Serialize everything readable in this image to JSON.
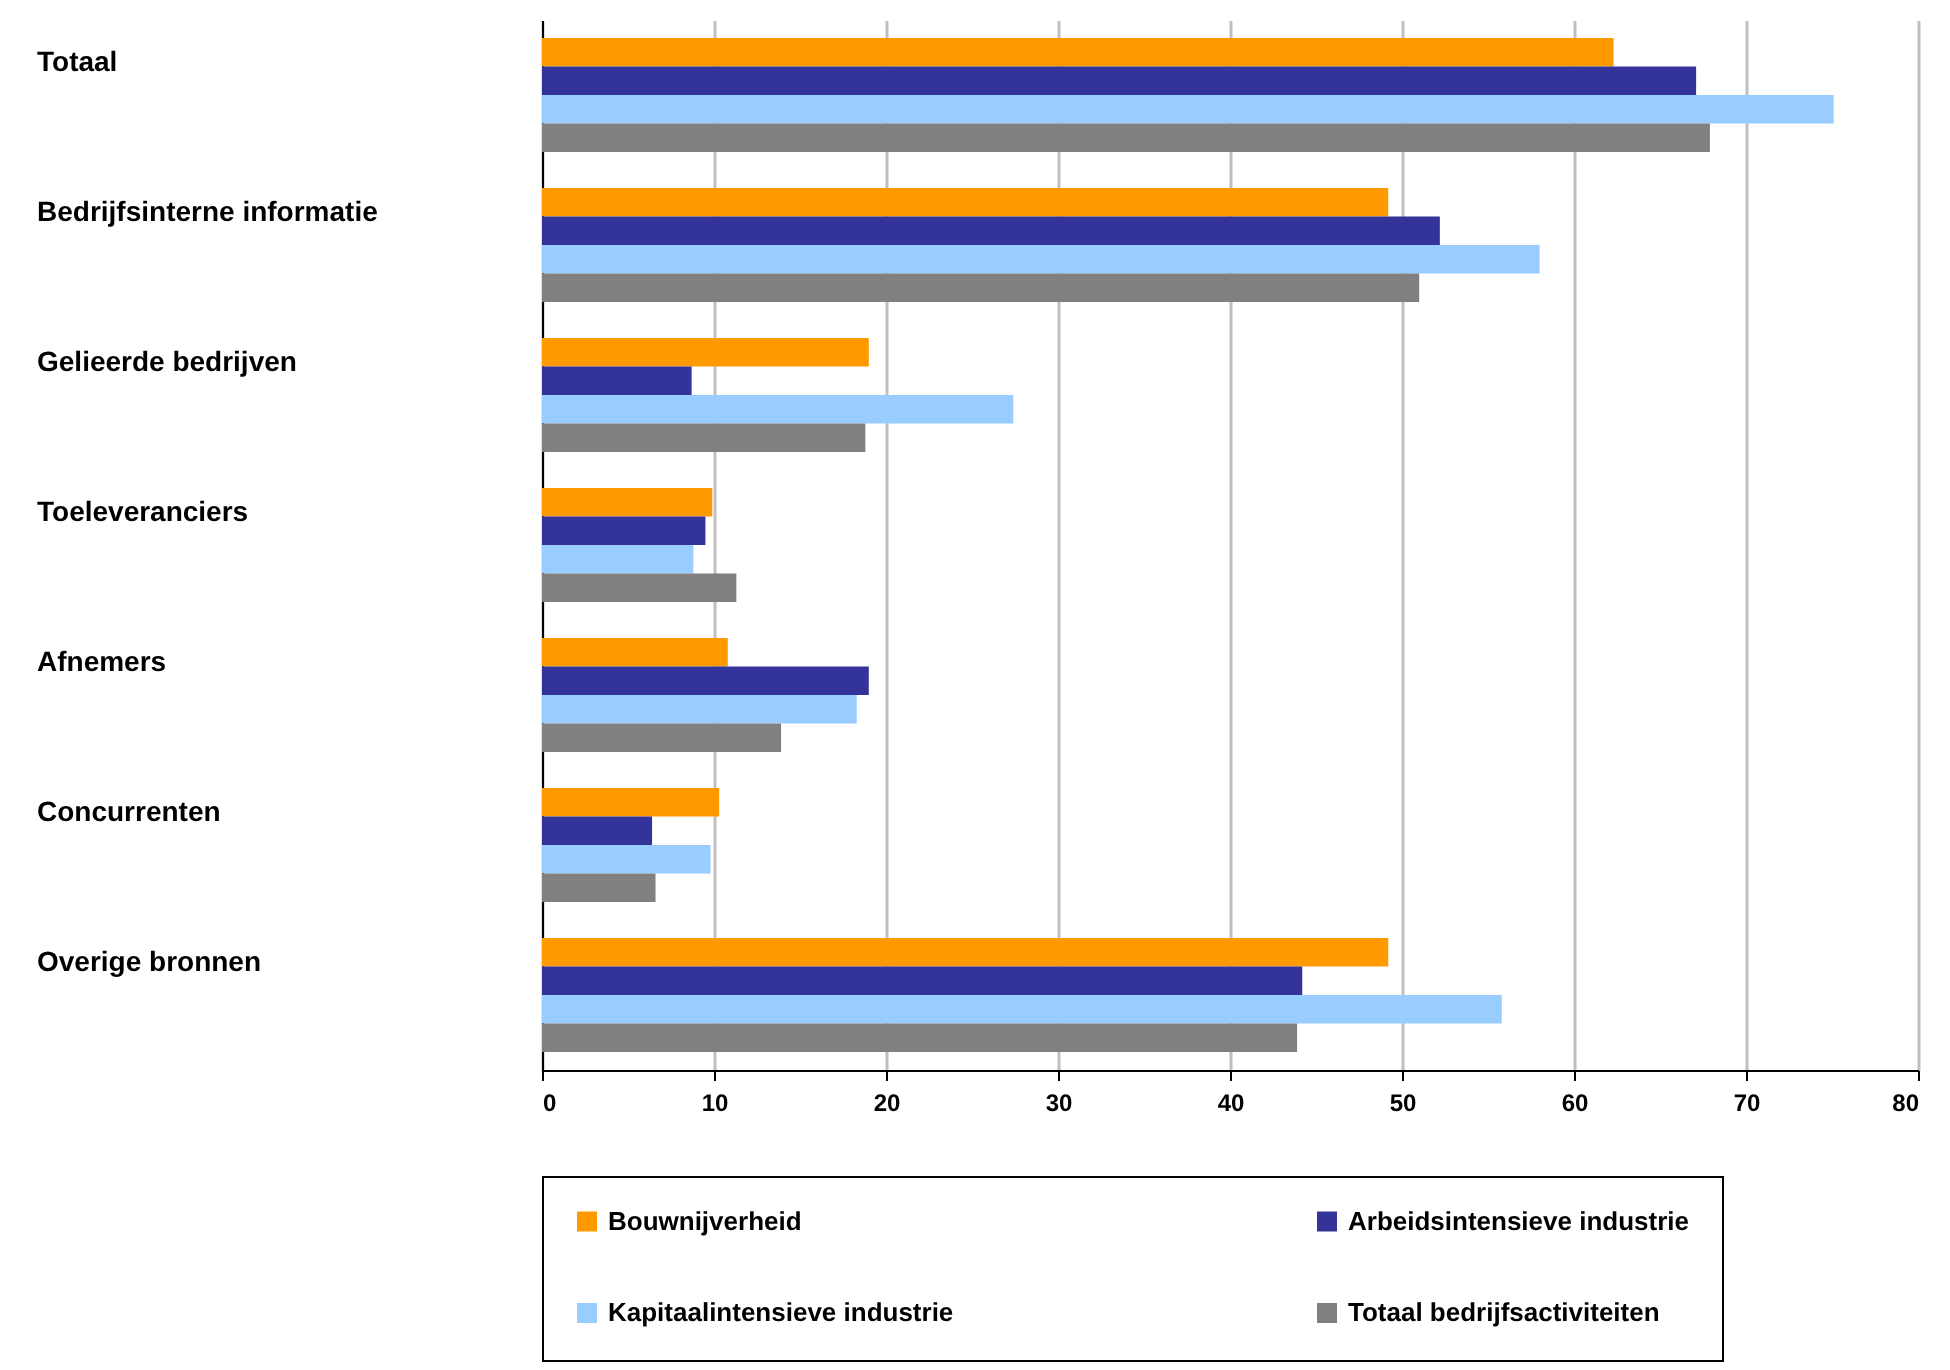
{
  "chart_data": {
    "type": "bar",
    "orientation": "horizontal",
    "categories": [
      "Totaal",
      "Bedrijfsinterne informatie",
      "Gelieerde bedrijven",
      "Toeleveranciers",
      "Afnemers",
      "Concurrenten",
      "Overige bronnen"
    ],
    "series": [
      {
        "name": "Bouwnijverheid",
        "color": "#ff9900",
        "values": [
          62.3,
          49.2,
          19.0,
          9.9,
          10.8,
          10.3,
          49.2
        ]
      },
      {
        "name": "Arbeidsintensieve industrie",
        "color": "#333399",
        "values": [
          67.1,
          52.2,
          8.7,
          9.5,
          19.0,
          6.4,
          44.2
        ]
      },
      {
        "name": "Kapitaalintensieve industrie",
        "color": "#99ccff",
        "values": [
          75.1,
          58.0,
          27.4,
          8.8,
          18.3,
          9.8,
          55.8
        ]
      },
      {
        "name": "Totaal bedrijfsactiviteiten",
        "color": "#808080",
        "values": [
          67.9,
          51.0,
          18.8,
          11.3,
          13.9,
          6.6,
          43.9
        ]
      }
    ],
    "xlim": [
      0,
      80
    ],
    "xticks": [
      0,
      10,
      20,
      30,
      40,
      50,
      60,
      70,
      80
    ],
    "grid": "x",
    "legend": "bottom"
  }
}
